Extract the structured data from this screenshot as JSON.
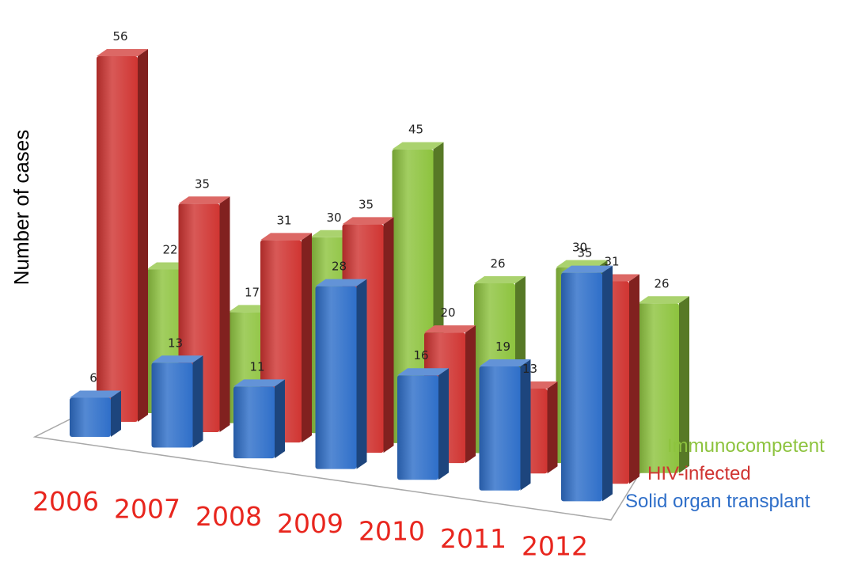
{
  "chart_data": {
    "type": "bar",
    "ylabel": "Number of cases",
    "categories": [
      "2006",
      "2007",
      "2008",
      "2009",
      "2010",
      "2011",
      "2012"
    ],
    "series": [
      {
        "name": "Immunocompetent",
        "color": "#8dc33e",
        "values": [
          22,
          17,
          30,
          45,
          26,
          30,
          26
        ]
      },
      {
        "name": "HIV-infected",
        "color": "#d03532",
        "values": [
          56,
          35,
          31,
          35,
          20,
          13,
          31
        ]
      },
      {
        "name": "Solid organ transplant",
        "color": "#2f6fc9",
        "values": [
          6,
          13,
          11,
          28,
          16,
          19,
          35
        ]
      }
    ],
    "year_color": "#e8261e",
    "grid": false,
    "legend": "series labels on the right depth axis"
  }
}
